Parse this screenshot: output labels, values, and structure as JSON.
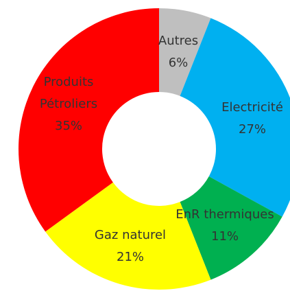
{
  "chart_data": {
    "type": "donut",
    "categories": [
      "Autres",
      "Electricité",
      "EnR thermiques",
      "Gaz naturel",
      "Produits Pétroliers"
    ],
    "values": [
      6,
      27,
      11,
      21,
      35
    ],
    "value_labels": [
      "6%",
      "27%",
      "11%",
      "21%",
      "35%"
    ],
    "colors": [
      "#bfbfbf",
      "#00b0f0",
      "#00b050",
      "#ffff00",
      "#ff0000"
    ]
  }
}
